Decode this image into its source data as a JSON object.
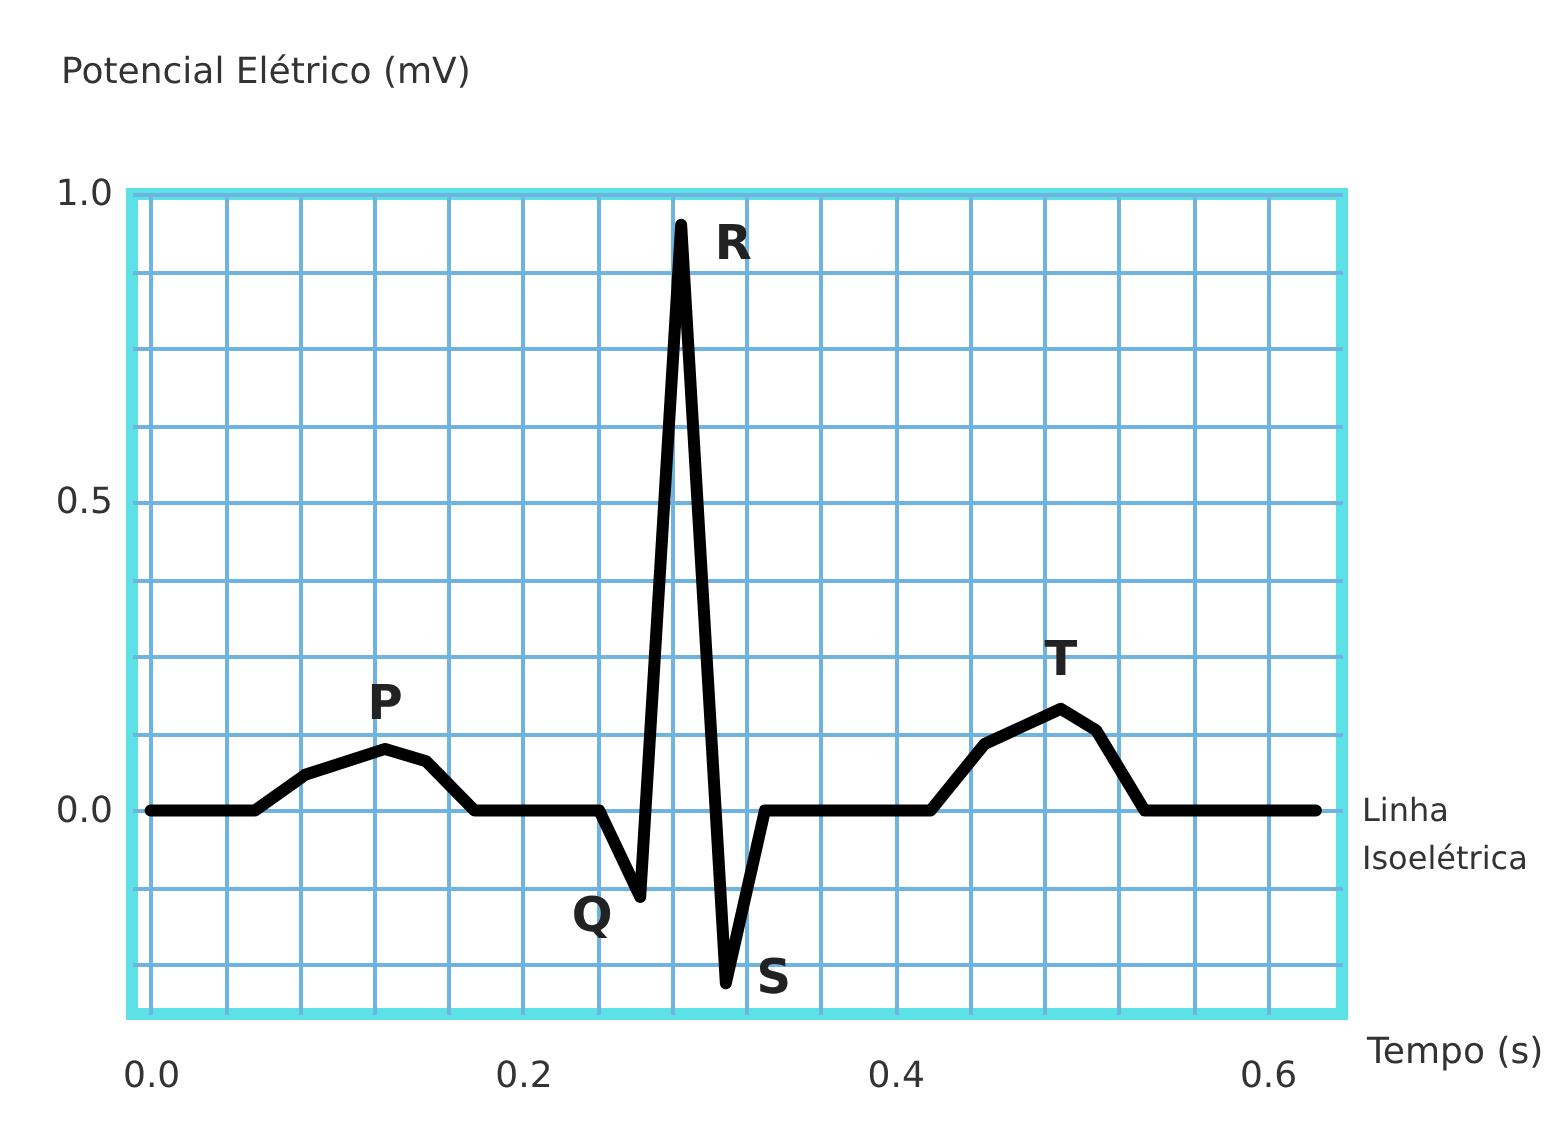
{
  "chart_data": {
    "type": "line",
    "ylabel": "Potencial Elétrico (mV)",
    "xlabel": "Tempo (s)",
    "xlim": [
      -0.01,
      0.64
    ],
    "ylim": [
      -0.33,
      1.0
    ],
    "xticks": [
      {
        "value": 0,
        "label": "0.0"
      },
      {
        "value": 0.04,
        "label": null
      },
      {
        "value": 0.08,
        "label": null
      },
      {
        "value": 0.12,
        "label": null
      },
      {
        "value": 0.16,
        "label": null
      },
      {
        "value": 0.2,
        "label": "0.2"
      },
      {
        "value": 0.24,
        "label": null
      },
      {
        "value": 0.28,
        "label": null
      },
      {
        "value": 0.32,
        "label": null
      },
      {
        "value": 0.36,
        "label": null
      },
      {
        "value": 0.4,
        "label": "0.4"
      },
      {
        "value": 0.44,
        "label": null
      },
      {
        "value": 0.48,
        "label": null
      },
      {
        "value": 0.52,
        "label": null
      },
      {
        "value": 0.56,
        "label": null
      },
      {
        "value": 0.6,
        "label": "0.6"
      }
    ],
    "yticks": [
      {
        "value": -0.25,
        "label": null
      },
      {
        "value": -0.125,
        "label": null
      },
      {
        "value": 0,
        "label": "0.0"
      },
      {
        "value": 0.125,
        "label": null
      },
      {
        "value": 0.25,
        "label": null
      },
      {
        "value": 0.375,
        "label": null
      },
      {
        "value": 0.5,
        "label": "0.5"
      },
      {
        "value": 0.625,
        "label": null
      },
      {
        "value": 0.75,
        "label": null
      },
      {
        "value": 0.875,
        "label": null
      },
      {
        "value": 1.0,
        "label": "1.0"
      }
    ],
    "grid": true,
    "line_style": "solid",
    "marker": "none",
    "series": [
      {
        "color": "#000000",
        "x": [
          0.0,
          0.056,
          0.083,
          0.126,
          0.148,
          0.174,
          0.241,
          0.263,
          0.285,
          0.309,
          0.33,
          0.419,
          0.448,
          0.489,
          0.508,
          0.534,
          0.626
        ],
        "values": [
          0,
          0,
          0.058,
          0.1,
          0.08,
          0,
          0,
          -0.14,
          0.95,
          -0.28,
          0,
          0,
          0.108,
          0.165,
          0.13,
          0,
          0
        ]
      }
    ],
    "annotations": [
      {
        "text": "P",
        "x": 0.126,
        "y": 0.1
      },
      {
        "text": "Q",
        "x": 0.263,
        "y": -0.14
      },
      {
        "text": "R",
        "x": 0.285,
        "y": 0.95
      },
      {
        "text": "S",
        "x": 0.309,
        "y": -0.28
      },
      {
        "text": "T",
        "x": 0.489,
        "y": 0.165
      },
      "Linha Isoelétrica"
    ]
  }
}
